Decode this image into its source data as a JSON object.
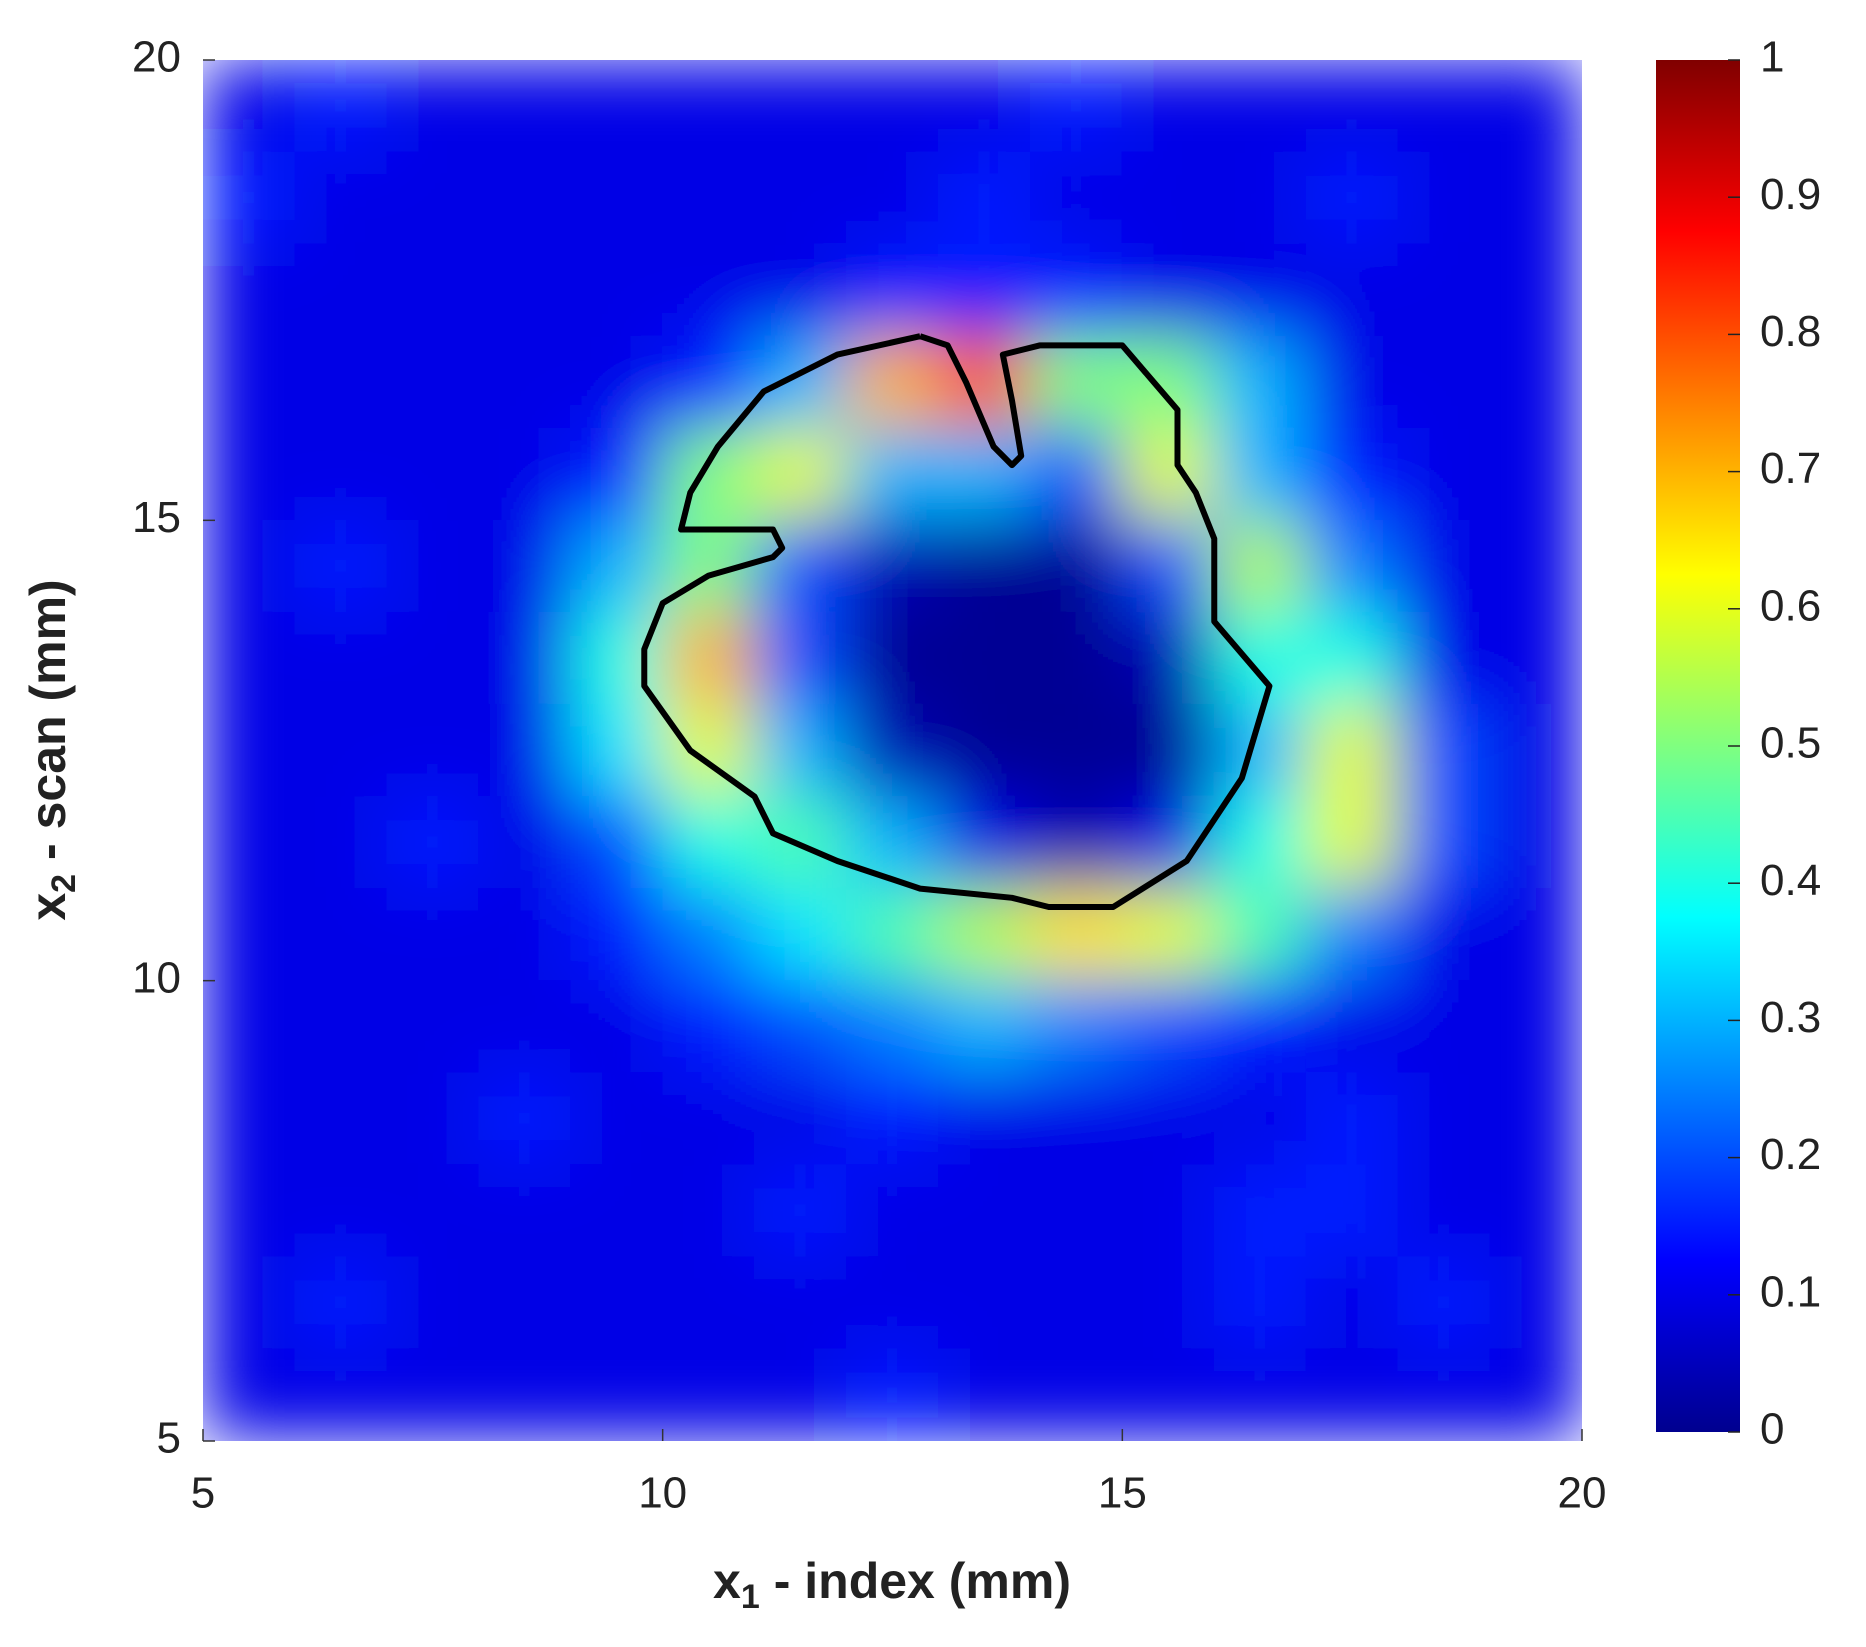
{
  "chart_data": {
    "type": "heatmap",
    "colormap": "jet",
    "x": [
      5.5,
      6.5,
      7.5,
      8.5,
      9.5,
      10.5,
      11.5,
      12.5,
      13.5,
      14.5,
      15.5,
      16.5,
      17.5,
      18.5,
      19.5
    ],
    "y": [
      19.5,
      18.5,
      17.5,
      16.5,
      15.5,
      14.5,
      13.5,
      12.5,
      11.5,
      10.5,
      9.5,
      8.5,
      7.5,
      6.5,
      5.5
    ],
    "z": [
      [
        0.1,
        0.15,
        0.1,
        0.1,
        0.1,
        0.1,
        0.1,
        0.1,
        0.1,
        0.15,
        0.1,
        0.1,
        0.1,
        0.1,
        0.1
      ],
      [
        0.15,
        0.1,
        0.1,
        0.1,
        0.1,
        0.1,
        0.1,
        0.1,
        0.15,
        0.1,
        0.1,
        0.1,
        0.15,
        0.1,
        0.1
      ],
      [
        0.1,
        0.1,
        0.1,
        0.1,
        0.1,
        0.1,
        0.1,
        0.15,
        0.15,
        0.15,
        0.1,
        0.1,
        0.1,
        0.1,
        0.1
      ],
      [
        0.1,
        0.1,
        0.1,
        0.1,
        0.1,
        0.15,
        0.3,
        0.7,
        0.8,
        0.5,
        0.5,
        0.3,
        0.1,
        0.1,
        0.1
      ],
      [
        0.1,
        0.1,
        0.1,
        0.1,
        0.15,
        0.5,
        0.6,
        0.3,
        0.3,
        0.2,
        0.6,
        0.3,
        0.15,
        0.1,
        0.1
      ],
      [
        0.1,
        0.15,
        0.1,
        0.1,
        0.3,
        0.5,
        0.2,
        0.05,
        0.02,
        0.02,
        0.2,
        0.55,
        0.25,
        0.1,
        0.1
      ],
      [
        0.1,
        0.1,
        0.1,
        0.1,
        0.4,
        0.7,
        0.2,
        0.02,
        0.02,
        0.02,
        0.05,
        0.4,
        0.4,
        0.1,
        0.1
      ],
      [
        0.1,
        0.1,
        0.1,
        0.1,
        0.35,
        0.6,
        0.3,
        0.05,
        0.02,
        0.02,
        0.02,
        0.3,
        0.6,
        0.2,
        0.1
      ],
      [
        0.1,
        0.1,
        0.15,
        0.1,
        0.2,
        0.4,
        0.45,
        0.3,
        0.1,
        0.05,
        0.1,
        0.4,
        0.6,
        0.2,
        0.1
      ],
      [
        0.1,
        0.1,
        0.1,
        0.1,
        0.15,
        0.25,
        0.35,
        0.45,
        0.55,
        0.65,
        0.6,
        0.45,
        0.25,
        0.1,
        0.1
      ],
      [
        0.1,
        0.1,
        0.1,
        0.1,
        0.1,
        0.15,
        0.2,
        0.25,
        0.3,
        0.25,
        0.2,
        0.15,
        0.1,
        0.1,
        0.1
      ],
      [
        0.1,
        0.1,
        0.1,
        0.15,
        0.1,
        0.1,
        0.1,
        0.15,
        0.1,
        0.1,
        0.1,
        0.1,
        0.15,
        0.1,
        0.1
      ],
      [
        0.1,
        0.1,
        0.1,
        0.1,
        0.1,
        0.1,
        0.15,
        0.1,
        0.1,
        0.1,
        0.1,
        0.15,
        0.15,
        0.1,
        0.1
      ],
      [
        0.1,
        0.15,
        0.1,
        0.1,
        0.1,
        0.1,
        0.1,
        0.1,
        0.1,
        0.1,
        0.1,
        0.15,
        0.1,
        0.15,
        0.1
      ],
      [
        0.1,
        0.1,
        0.1,
        0.1,
        0.1,
        0.1,
        0.1,
        0.15,
        0.1,
        0.1,
        0.1,
        0.1,
        0.1,
        0.1,
        0.1
      ]
    ],
    "contour": {
      "color": "#000000",
      "x": [
        12.8,
        11.9,
        11.1,
        10.6,
        10.3,
        10.2,
        11.2,
        11.3,
        11.2,
        10.5,
        10.0,
        9.8,
        9.8,
        10.3,
        11.0,
        11.2,
        11.9,
        12.8,
        13.8,
        14.2,
        14.9,
        15.7,
        16.3,
        16.6,
        16.0,
        16.0,
        16.0,
        15.8,
        15.6,
        15.6,
        15.0,
        14.1,
        13.7,
        13.8,
        13.9,
        13.8,
        13.6,
        13.3,
        13.1,
        12.8
      ],
      "y": [
        17.0,
        16.8,
        16.4,
        15.8,
        15.3,
        14.9,
        14.9,
        14.7,
        14.6,
        14.4,
        14.1,
        13.6,
        13.2,
        12.5,
        12.0,
        11.6,
        11.3,
        11.0,
        10.9,
        10.8,
        10.8,
        11.3,
        12.2,
        13.2,
        13.9,
        14.4,
        14.8,
        15.3,
        15.6,
        16.2,
        16.9,
        16.9,
        16.8,
        16.3,
        15.7,
        15.6,
        15.8,
        16.5,
        16.9,
        17.0
      ]
    },
    "xlim": [
      5,
      20
    ],
    "ylim": [
      5,
      20
    ],
    "xticks": [
      5,
      10,
      15,
      20
    ],
    "yticks": [
      5,
      10,
      15,
      20
    ],
    "clim": [
      0,
      1
    ],
    "cticks": [
      0,
      0.1,
      0.2,
      0.3,
      0.4,
      0.5,
      0.6,
      0.7,
      0.8,
      0.9,
      1
    ],
    "xlabel": {
      "base": "x",
      "sub": "1",
      "rest": "- index (mm)"
    },
    "ylabel": {
      "base": "x",
      "sub": "2",
      "rest": "- scan (mm)"
    }
  }
}
